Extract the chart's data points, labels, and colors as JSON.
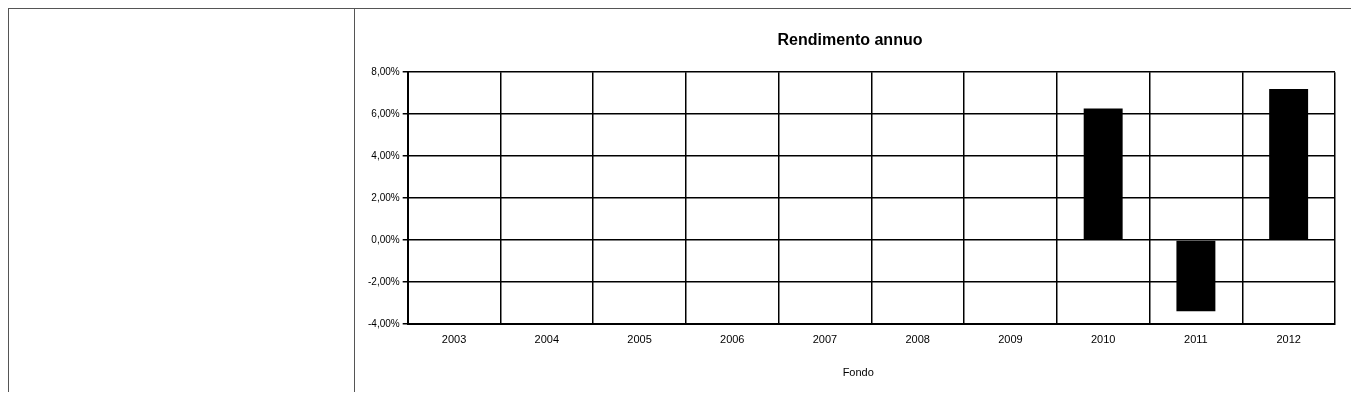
{
  "chart_data": {
    "type": "bar",
    "title": "Rendimento annuo",
    "categories": [
      "2003",
      "2004",
      "2005",
      "2006",
      "2007",
      "2008",
      "2009",
      "2010",
      "2011",
      "2012"
    ],
    "series": [
      {
        "name": "Fondo",
        "color": "#000000",
        "values": [
          null,
          null,
          null,
          null,
          null,
          null,
          null,
          6.27,
          -3.4,
          7.2
        ]
      }
    ],
    "ylim": [
      -4,
      8
    ],
    "yticks": [
      {
        "value": -4,
        "label": "-4,00%"
      },
      {
        "value": -2,
        "label": "-2,00%"
      },
      {
        "value": 0,
        "label": "0,00%"
      },
      {
        "value": 2,
        "label": "2,00%"
      },
      {
        "value": 4,
        "label": "4,00%"
      },
      {
        "value": 6,
        "label": "6,00%"
      },
      {
        "value": 8,
        "label": "8,00%"
      }
    ],
    "grid": true,
    "legend": "bottom"
  }
}
